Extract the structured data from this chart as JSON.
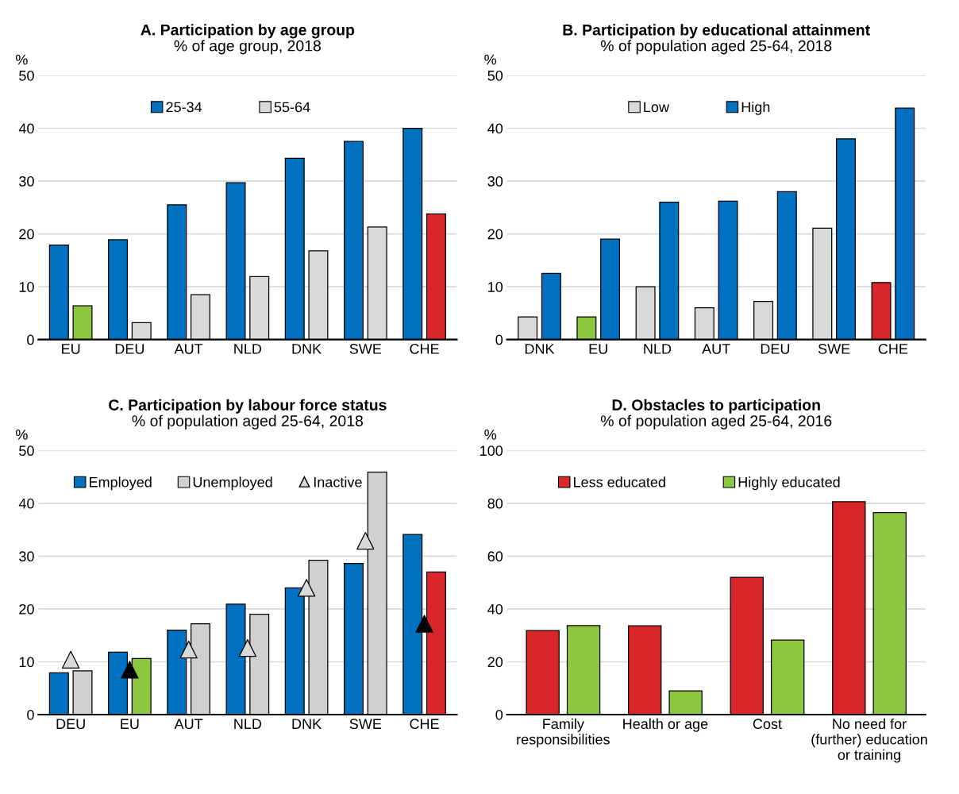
{
  "chart_data": [
    {
      "type": "bar",
      "title": "A. Participation by age group",
      "subtitle": "% of age group, 2018",
      "ylabel": "%",
      "categories": [
        "EU",
        "DEU",
        "AUT",
        "NLD",
        "DNK",
        "SWE",
        "CHE"
      ],
      "ylim": [
        0,
        50
      ],
      "yticks": [
        0,
        10,
        20,
        30,
        40,
        50
      ],
      "grid": "y",
      "legend": "top",
      "series": [
        {
          "name": "25-34",
          "color": "#0070c0",
          "values": [
            17.9,
            18.9,
            25.5,
            29.7,
            34.3,
            37.5,
            40.0
          ]
        },
        {
          "name": "55-64",
          "color": "#d9d9d9",
          "colors": [
            "#8dc63f",
            "#d9d9d9",
            "#d9d9d9",
            "#d9d9d9",
            "#d9d9d9",
            "#d9d9d9",
            "#d9262b"
          ],
          "values": [
            6.4,
            3.2,
            8.5,
            11.9,
            16.8,
            21.3,
            23.8
          ]
        }
      ]
    },
    {
      "type": "bar",
      "title": "B. Participation by educational attainment",
      "subtitle": "% of population aged 25-64, 2018",
      "ylabel": "%",
      "categories": [
        "DNK",
        "EU",
        "NLD",
        "AUT",
        "DEU",
        "SWE",
        "CHE"
      ],
      "ylim": [
        0,
        50
      ],
      "yticks": [
        0,
        10,
        20,
        30,
        40,
        50
      ],
      "grid": "y",
      "legend": "top",
      "series": [
        {
          "name": "Low",
          "color": "#d9d9d9",
          "colors": [
            "#d9d9d9",
            "#8dc63f",
            "#d9d9d9",
            "#d9d9d9",
            "#d9d9d9",
            "#d9d9d9",
            "#d9262b"
          ],
          "values": [
            4.3,
            4.3,
            10.0,
            6.0,
            7.2,
            21.1,
            10.8
          ]
        },
        {
          "name": "High",
          "color": "#0070c0",
          "values": [
            12.5,
            19.0,
            26.0,
            26.2,
            28.0,
            38.0,
            43.8
          ]
        }
      ]
    },
    {
      "type": "bar",
      "title": "C. Participation by labour force status",
      "subtitle": "% of population aged 25-64, 2018",
      "ylabel": "%",
      "categories": [
        "DEU",
        "EU",
        "AUT",
        "NLD",
        "DNK",
        "SWE",
        "CHE"
      ],
      "ylim": [
        0,
        50
      ],
      "yticks": [
        0,
        10,
        20,
        30,
        40,
        50
      ],
      "grid": "y",
      "legend": "top",
      "series": [
        {
          "name": "Employed",
          "color": "#0070c0",
          "values": [
            7.9,
            11.8,
            16.0,
            20.9,
            24.0,
            28.6,
            34.1
          ]
        },
        {
          "name": "Unemployed",
          "color": "#d0d0d0",
          "colors": [
            "#d0d0d0",
            "#8dc63f",
            "#d0d0d0",
            "#d0d0d0",
            "#d0d0d0",
            "#d0d0d0",
            "#d9262b"
          ],
          "values": [
            8.3,
            10.6,
            17.2,
            19.0,
            29.2,
            45.9,
            27.0
          ]
        },
        {
          "name": "Inactive",
          "type": "scatter",
          "marker": "triangle",
          "color": "#d9d9d9",
          "colors": [
            "#d9d9d9",
            "#000000",
            "#d9d9d9",
            "#d9d9d9",
            "#d9d9d9",
            "#d9d9d9",
            "#000000"
          ],
          "x": [
            "DEU",
            "EU",
            "AUT",
            "NLD",
            "DNK",
            "SWE",
            "CHE"
          ],
          "values": [
            10.4,
            8.5,
            12.3,
            12.6,
            24.0,
            32.9,
            17.2
          ]
        }
      ]
    },
    {
      "type": "bar",
      "title": "D. Obstacles to participation",
      "subtitle": "% of population aged 25-64, 2016",
      "ylabel": "%",
      "categories": [
        "Family\nresponsibilities",
        "Health or age",
        "Cost",
        "No need for\n(further) education\nor training"
      ],
      "ylim": [
        0,
        100
      ],
      "yticks": [
        0,
        20,
        40,
        60,
        80,
        100
      ],
      "grid": "y",
      "legend": "top",
      "series": [
        {
          "name": "Less educated",
          "color": "#d9262b",
          "values": [
            31.8,
            33.6,
            52.0,
            80.6
          ]
        },
        {
          "name": "Highly educated",
          "color": "#8dc63f",
          "values": [
            33.7,
            9.0,
            28.2,
            76.5
          ]
        }
      ]
    }
  ]
}
